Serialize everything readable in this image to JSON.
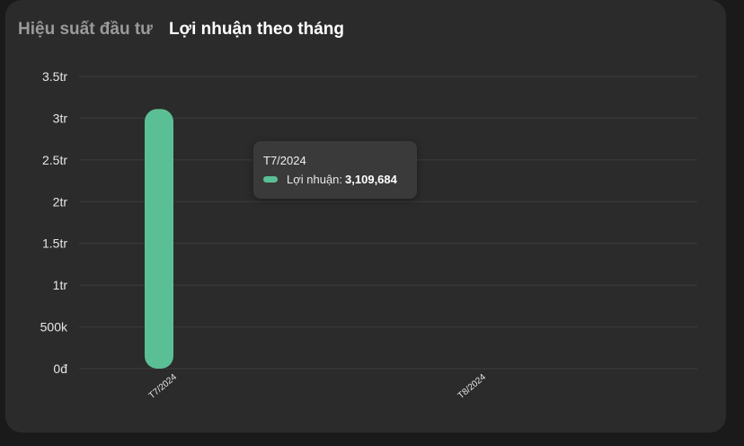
{
  "tabs": [
    {
      "label": "Hiệu suất đầu tư",
      "active": false
    },
    {
      "label": "Lợi nhuận theo tháng",
      "active": true
    }
  ],
  "tooltip": {
    "title": "T7/2024",
    "series_label": "Lợi nhuận:",
    "value": "3,109,684"
  },
  "colors": {
    "bar": "#5bbf96",
    "card_bg": "#2b2b2b",
    "page_bg": "#1a1a1a"
  },
  "chart_data": {
    "type": "bar",
    "categories": [
      "T7/2024",
      "T8/2024"
    ],
    "series": [
      {
        "name": "Lợi nhuận",
        "values": [
          3109684,
          0
        ]
      }
    ],
    "y_ticks": [
      {
        "value": 0,
        "label": "0đ"
      },
      {
        "value": 500000,
        "label": "500k"
      },
      {
        "value": 1000000,
        "label": "1tr"
      },
      {
        "value": 1500000,
        "label": "1.5tr"
      },
      {
        "value": 2000000,
        "label": "2tr"
      },
      {
        "value": 2500000,
        "label": "2.5tr"
      },
      {
        "value": 3000000,
        "label": "3tr"
      },
      {
        "value": 3500000,
        "label": "3.5tr"
      }
    ],
    "ylim": [
      0,
      3500000
    ],
    "grid": true,
    "title": "",
    "xlabel": "",
    "ylabel": ""
  }
}
